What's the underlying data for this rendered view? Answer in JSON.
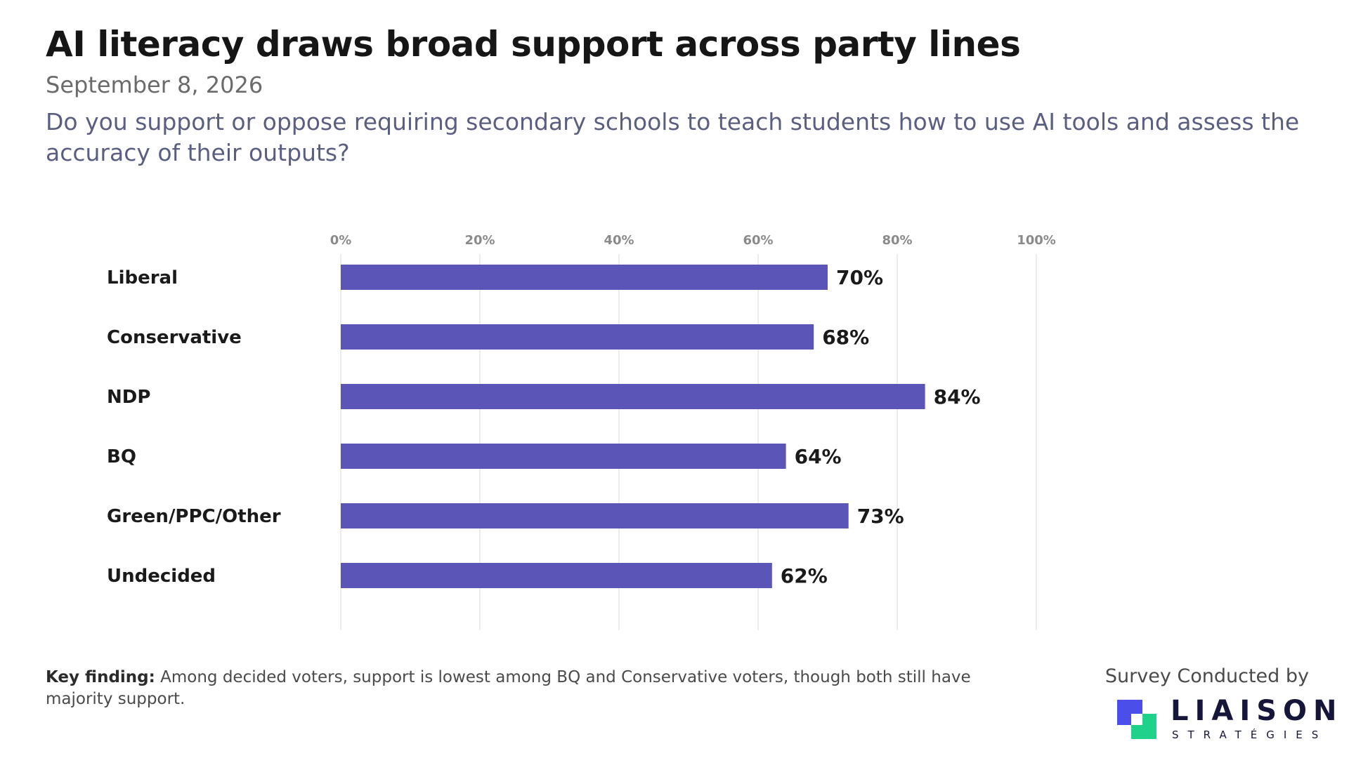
{
  "header": {
    "title": "AI literacy draws broad support across party lines",
    "date": "September 8, 2026",
    "question": "Do you support or oppose requiring secondary schools to teach students how to use AI tools and assess the accuracy of their outputs?"
  },
  "chart_data": {
    "type": "bar",
    "orientation": "horizontal",
    "categories": [
      "Liberal",
      "Conservative",
      "NDP",
      "BQ",
      "Green/PPC/Other",
      "Undecided"
    ],
    "values": [
      70,
      68,
      84,
      64,
      73,
      62
    ],
    "value_labels": [
      "70%",
      "68%",
      "84%",
      "64%",
      "73%",
      "62%"
    ],
    "xlim": [
      0,
      100
    ],
    "xticks": [
      0,
      20,
      40,
      60,
      80,
      100
    ],
    "xtick_labels": [
      "0%",
      "20%",
      "40%",
      "60%",
      "80%",
      "100%"
    ],
    "xaxis_position": "top",
    "grid": true,
    "xlabel": "",
    "ylabel": "",
    "bar_color": "#5b55b8",
    "grid_color": "#e6e6e6"
  },
  "footer": {
    "key_finding_label": "Key finding:",
    "key_finding_text": " Among decided voters, support is lowest among BQ and Conservative voters, though both still have majority support.",
    "credit": "Survey Conducted by",
    "logo_name": "LIAISON",
    "logo_sub": "STRATÉGIES",
    "logo_colors": [
      "#4b4ee8",
      "#1fd18a"
    ]
  }
}
